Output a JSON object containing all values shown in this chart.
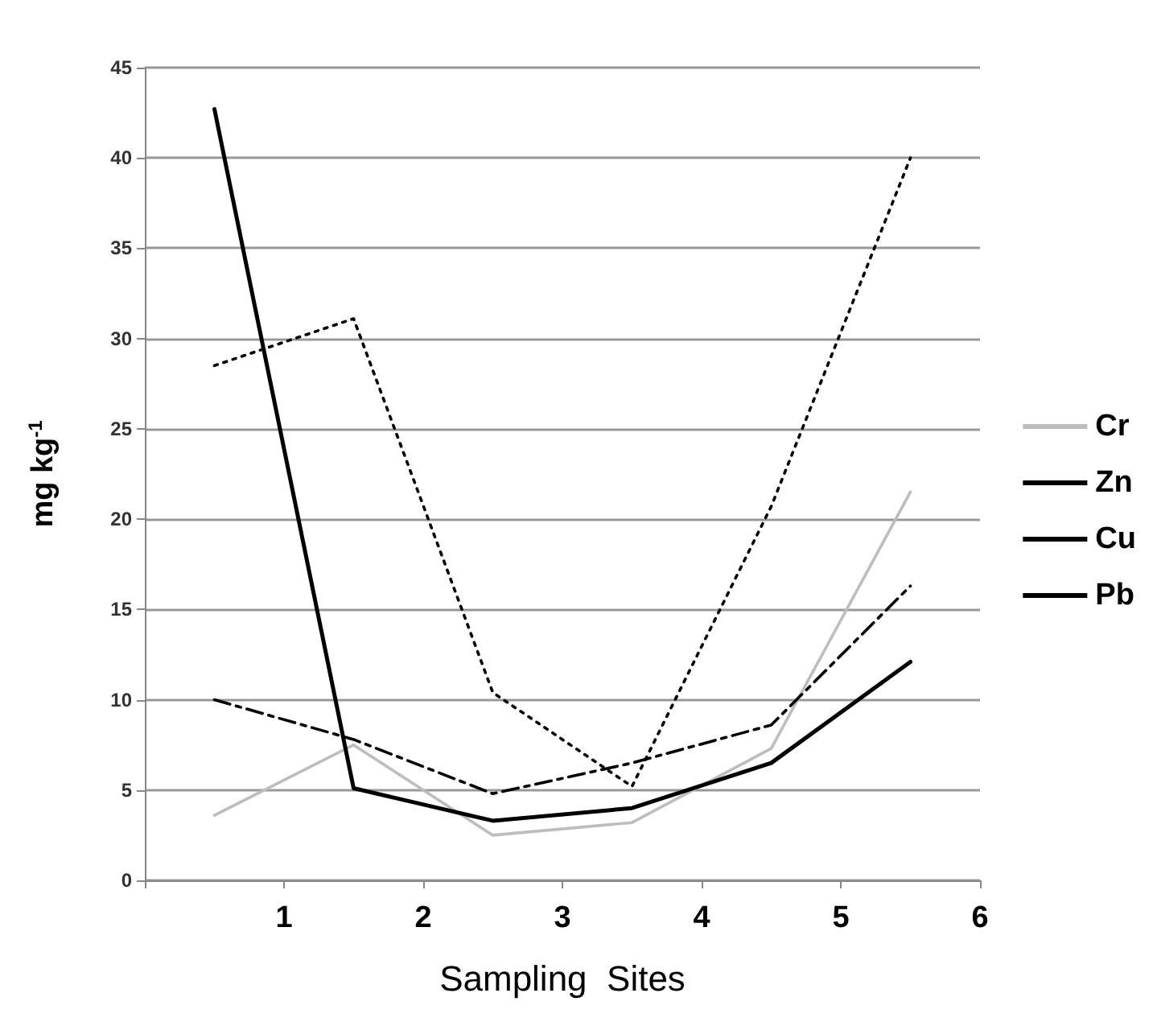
{
  "chart_data": {
    "type": "line",
    "xlabel": "Sampling  Sites",
    "ylabel": "mg kg$^{-1}$",
    "x": [
      0.5,
      1.5,
      2.5,
      3.5,
      4.5,
      5.5
    ],
    "series": [
      {
        "name": "Cr",
        "color": "#bdbdbd",
        "line_style": "solid",
        "values": [
          3.6,
          7.5,
          2.5,
          3.2,
          7.3,
          21.5
        ]
      },
      {
        "name": "Zn",
        "color": "#000000",
        "line_style": "dotted",
        "values": [
          28.5,
          31.1,
          10.4,
          5.2,
          20.7,
          40.0
        ]
      },
      {
        "name": "Cu",
        "color": "#000000",
        "line_style": "solid",
        "values": [
          42.7,
          5.1,
          3.3,
          4.0,
          6.5,
          12.1
        ]
      },
      {
        "name": "Pb",
        "color": "#000000",
        "line_style": "dashed",
        "values": [
          10.0,
          7.8,
          4.8,
          6.5,
          8.6,
          16.3
        ]
      }
    ],
    "xlim": [
      0,
      6
    ],
    "xticks": [
      {
        "value": 0,
        "label": null
      },
      1,
      2,
      3,
      4,
      5,
      6
    ],
    "ylim": [
      0,
      45
    ],
    "yticks": [
      0,
      5,
      10,
      15,
      20,
      25,
      30,
      35,
      40,
      45
    ],
    "grid": "y",
    "legend": "right",
    "marker": "none"
  }
}
